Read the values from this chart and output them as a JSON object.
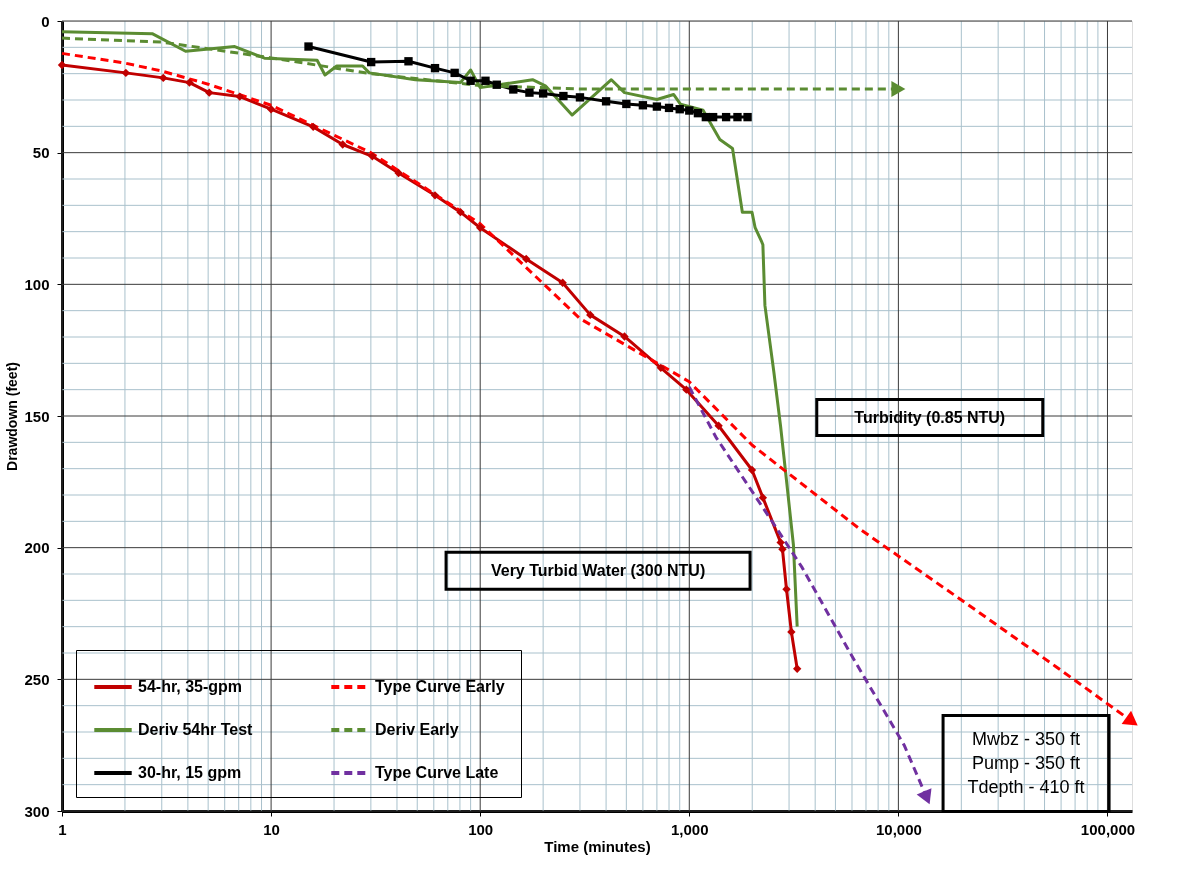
{
  "chart_data": {
    "type": "line",
    "xlabel": "Time (minutes)",
    "ylabel": "Drawdown (feet)",
    "log": "x",
    "grid": true,
    "legend": "bottom left",
    "xlim": [
      1,
      131000
    ],
    "ylim": [
      300,
      0
    ],
    "xticks": [
      1,
      {
        "value": 2,
        "label": null
      },
      {
        "value": 3,
        "label": null
      },
      {
        "value": 4,
        "label": null
      },
      {
        "value": 5,
        "label": null
      },
      {
        "value": 6,
        "label": null
      },
      {
        "value": 7,
        "label": null
      },
      {
        "value": 8,
        "label": null
      },
      {
        "value": 9,
        "label": null
      },
      10,
      {
        "value": 20,
        "label": null
      },
      {
        "value": 30,
        "label": null
      },
      {
        "value": 40,
        "label": null
      },
      {
        "value": 50,
        "label": null
      },
      {
        "value": 60,
        "label": null
      },
      {
        "value": 70,
        "label": null
      },
      {
        "value": 80,
        "label": null
      },
      {
        "value": 90,
        "label": null
      },
      100,
      {
        "value": 200,
        "label": null
      },
      {
        "value": 300,
        "label": null
      },
      {
        "value": 400,
        "label": null
      },
      {
        "value": 500,
        "label": null
      },
      {
        "value": 600,
        "label": null
      },
      {
        "value": 700,
        "label": null
      },
      {
        "value": 800,
        "label": null
      },
      {
        "value": 900,
        "label": null
      },
      {
        "value": 1000,
        "label": "1,000"
      },
      {
        "value": 2000,
        "label": null
      },
      {
        "value": 3000,
        "label": null
      },
      {
        "value": 4000,
        "label": null
      },
      {
        "value": 5000,
        "label": null
      },
      {
        "value": 6000,
        "label": null
      },
      {
        "value": 7000,
        "label": null
      },
      {
        "value": 8000,
        "label": null
      },
      {
        "value": 9000,
        "label": null
      },
      {
        "value": 10000,
        "label": "10,000"
      },
      {
        "value": 20000,
        "label": null
      },
      {
        "value": 30000,
        "label": null
      },
      {
        "value": 40000,
        "label": null
      },
      {
        "value": 50000,
        "label": null
      },
      {
        "value": 60000,
        "label": null
      },
      {
        "value": 70000,
        "label": null
      },
      {
        "value": 80000,
        "label": null
      },
      {
        "value": 90000,
        "label": null
      },
      {
        "value": 100000,
        "label": "100,000"
      }
    ],
    "yticks": [
      0,
      {
        "value": 10,
        "label": null
      },
      {
        "value": 20,
        "label": null
      },
      {
        "value": 30,
        "label": null
      },
      {
        "value": 40,
        "label": null
      },
      50,
      {
        "value": 60,
        "label": null
      },
      {
        "value": 70,
        "label": null
      },
      {
        "value": 80,
        "label": null
      },
      {
        "value": 90,
        "label": null
      },
      100,
      {
        "value": 110,
        "label": null
      },
      {
        "value": 120,
        "label": null
      },
      {
        "value": 130,
        "label": null
      },
      {
        "value": 140,
        "label": null
      },
      150,
      {
        "value": 160,
        "label": null
      },
      {
        "value": 170,
        "label": null
      },
      {
        "value": 180,
        "label": null
      },
      {
        "value": 190,
        "label": null
      },
      200,
      {
        "value": 210,
        "label": null
      },
      {
        "value": 220,
        "label": null
      },
      {
        "value": 230,
        "label": null
      },
      {
        "value": 240,
        "label": null
      },
      250,
      {
        "value": 260,
        "label": null
      },
      {
        "value": 270,
        "label": null
      },
      {
        "value": 280,
        "label": null
      },
      {
        "value": 290,
        "label": null
      },
      300
    ],
    "annotations": [
      "Turbidity (0.85 NTU)",
      "Very Turbid Water (300 NTU)",
      "Mwbz - 350 ft\nPump - 350 ft\nTdepth - 410 ft"
    ],
    "series": [
      {
        "name": "54-hr, 35-gpm",
        "color": "#c00000",
        "marker": "diamond",
        "line_style": "solid",
        "x": [
          1,
          2.02,
          3.05,
          4.07,
          5.06,
          7.08,
          10,
          15.9,
          22,
          30.5,
          40.7,
          60.8,
          80.5,
          100,
          166,
          248,
          336,
          490,
          731,
          968,
          1381,
          1995,
          2249,
          2734,
          2790,
          2917,
          3078,
          3281
        ],
        "values": [
          16.7,
          19.7,
          21.6,
          23.4,
          27.2,
          28.7,
          33.5,
          40.2,
          46.9,
          51.4,
          57.7,
          66.2,
          72.6,
          78.5,
          90.4,
          99.4,
          111.6,
          119.8,
          131.7,
          140,
          153.7,
          170.5,
          181,
          198,
          200.6,
          215.8,
          232,
          246
        ]
      },
      {
        "name": "Deriv 54hr Test",
        "color": "#5b8c32",
        "marker": "none",
        "line_style": "solid",
        "x": [
          1,
          2.7,
          3.9,
          6.7,
          9.3,
          16.6,
          18.1,
          20.6,
          27.4,
          29.5,
          49,
          80.5,
          90,
          100,
          178,
          205,
          275,
          424,
          490,
          700,
          841,
          907,
          1164,
          1400,
          1610,
          1794,
          1995,
          2065,
          2224,
          2249,
          2300,
          2535,
          2734,
          2917,
          3148,
          3281
        ],
        "values": [
          4.1,
          4.8,
          11.5,
          9.7,
          14.1,
          14.9,
          20.5,
          17.1,
          17.1,
          19.7,
          22.3,
          23.4,
          18.6,
          25.3,
          22.3,
          24.6,
          35.7,
          22.3,
          27.2,
          29.8,
          27.9,
          31.6,
          33.9,
          45,
          48.4,
          72.6,
          72.6,
          78.5,
          84,
          85,
          108,
          133,
          154,
          174.5,
          199,
          230
        ]
      },
      {
        "name": "30-hr, 15 gpm",
        "color": "#000000",
        "marker": "square",
        "line_style": "solid",
        "x": [
          15.1,
          30.1,
          45.4,
          60.8,
          75.5,
          90,
          106,
          120,
          144,
          172,
          200,
          250,
          300,
          400,
          500,
          600,
          700,
          800,
          900,
          1000,
          1100,
          1200,
          1300,
          1500,
          1700,
          1900
        ],
        "values": [
          9.7,
          15.6,
          15.3,
          17.9,
          19.7,
          22.7,
          22.7,
          24.2,
          26,
          27.2,
          27.5,
          28.5,
          29,
          30.5,
          31.5,
          32,
          32.5,
          33,
          33.5,
          34,
          35,
          36.5,
          36.5,
          36.5,
          36.5,
          36.5
        ]
      },
      {
        "name": "Type Curve Early",
        "color": "#ff0000",
        "marker": "none",
        "line_style": "dashed",
        "x": [
          1,
          2,
          3,
          5,
          10,
          30,
          100,
          300,
          1000,
          1995,
          6556,
          19300,
          56300,
          131000
        ],
        "values": [
          12.3,
          16,
          19,
          24,
          32,
          50,
          77,
          113,
          137,
          161,
          193,
          219,
          245,
          266
        ]
      },
      {
        "name": "Deriv Early",
        "color": "#5b8c32",
        "marker": "none",
        "line_style": "dashed",
        "x": [
          1,
          3,
          10,
          30,
          100,
          300,
          10000
        ],
        "values": [
          6.5,
          8,
          14,
          20,
          24.5,
          25.8,
          25.8
        ]
      },
      {
        "name": "Type Curve Late",
        "color": "#7030a0",
        "marker": "none",
        "line_style": "dashed",
        "x": [
          1000,
          1340,
          2535,
          3467,
          6080,
          10660,
          13680
        ],
        "values": [
          139,
          158,
          191,
          207.6,
          242,
          275,
          295
        ]
      }
    ]
  }
}
